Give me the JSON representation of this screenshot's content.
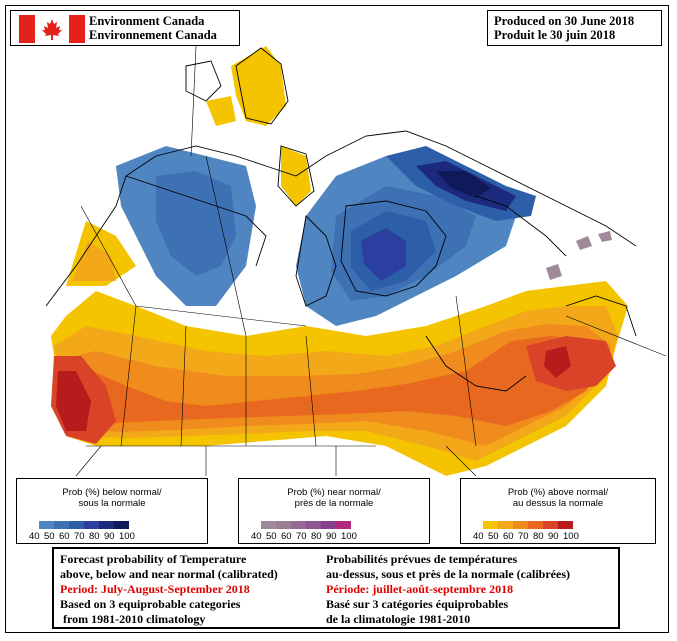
{
  "header": {
    "agency_en": "Environment Canada",
    "agency_fr": "Environnement Canada",
    "produced_en": "Produced on 30 June 2018",
    "produced_fr": "Produit le 30 juin 2018"
  },
  "legends": [
    {
      "title_en": "Prob (%) below normal/",
      "title_fr": "sous la normale",
      "ticks": [
        "40",
        "50",
        "60",
        "70",
        "80",
        "90",
        "100"
      ],
      "colors": [
        "#4f86c2",
        "#3d71b4",
        "#2d5fa8",
        "#2a3f9f",
        "#1b2a7c",
        "#101a5a"
      ]
    },
    {
      "title_en": "Prob (%) near normal/",
      "title_fr": "près de la normale",
      "ticks": [
        "40",
        "50",
        "60",
        "70",
        "80",
        "90",
        "100"
      ],
      "colors": [
        "#a08a9a",
        "#9a7e96",
        "#946a92",
        "#8e5590",
        "#88408c",
        "#b02a7e"
      ]
    },
    {
      "title_en": "Prob (%) above normal/",
      "title_fr": "au dessus la normale",
      "ticks": [
        "40",
        "50",
        "60",
        "70",
        "80",
        "90",
        "100"
      ],
      "colors": [
        "#f5c400",
        "#f3a81a",
        "#f08b1d",
        "#e8681f",
        "#d94428",
        "#b71b1b"
      ]
    }
  ],
  "footer": {
    "en": [
      "Forecast probability of Temperature",
      "above, below and near normal (calibrated)",
      "Period: July-August-September 2018",
      "Based on 3 equiprobable categories",
      " from 1981-2010 climatology"
    ],
    "fr": [
      "Probabilités prévues de températures",
      "au-dessus, sous et près de la normale (calibrées)",
      "Période: juillet-août-septembre 2018",
      "Basé sur 3 catégories équiprobables",
      "de la climatologie 1981-2010"
    ]
  },
  "colors": {
    "yellow": "#f5c400",
    "orange_light": "#f3a81a",
    "orange": "#f08b1d",
    "orange_dark": "#e8681f",
    "red": "#d94428",
    "dark_red": "#b71b1b",
    "blue_light": "#4f86c2",
    "blue": "#3d71b4",
    "blue_mid": "#2d5fa8",
    "indigo": "#2a3f9f",
    "navy": "#1b2a7c",
    "grey_purple": "#a08a9a",
    "flag_red": "#e4211b"
  }
}
